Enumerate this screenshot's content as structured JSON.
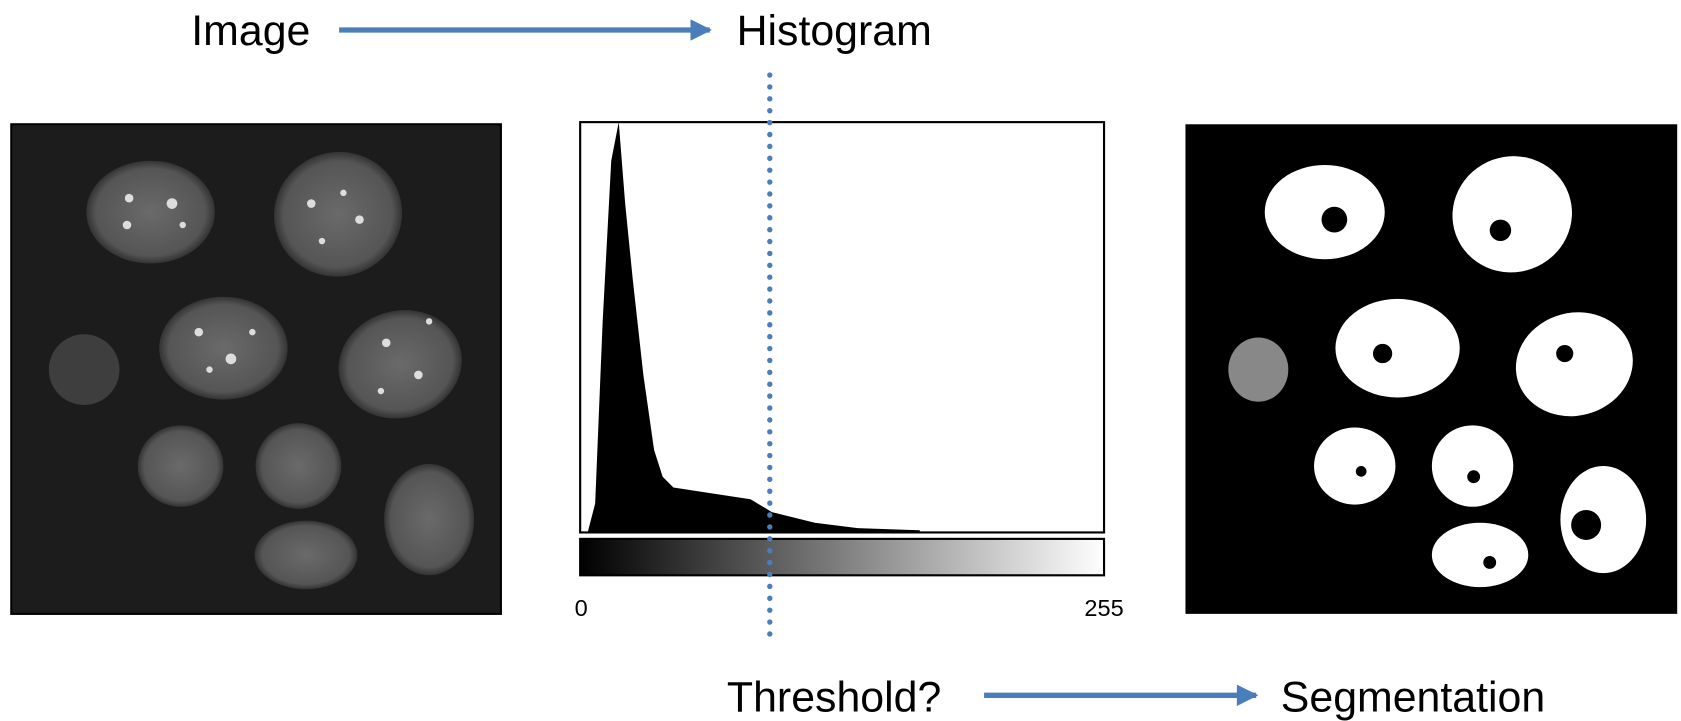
{
  "header": {
    "left_label": "Image",
    "right_label": "Histogram"
  },
  "histogram": {
    "min_label": 0,
    "max_label": 255
  },
  "footer": {
    "left_label": "Threshold?",
    "right_label": "Segmentation"
  }
}
